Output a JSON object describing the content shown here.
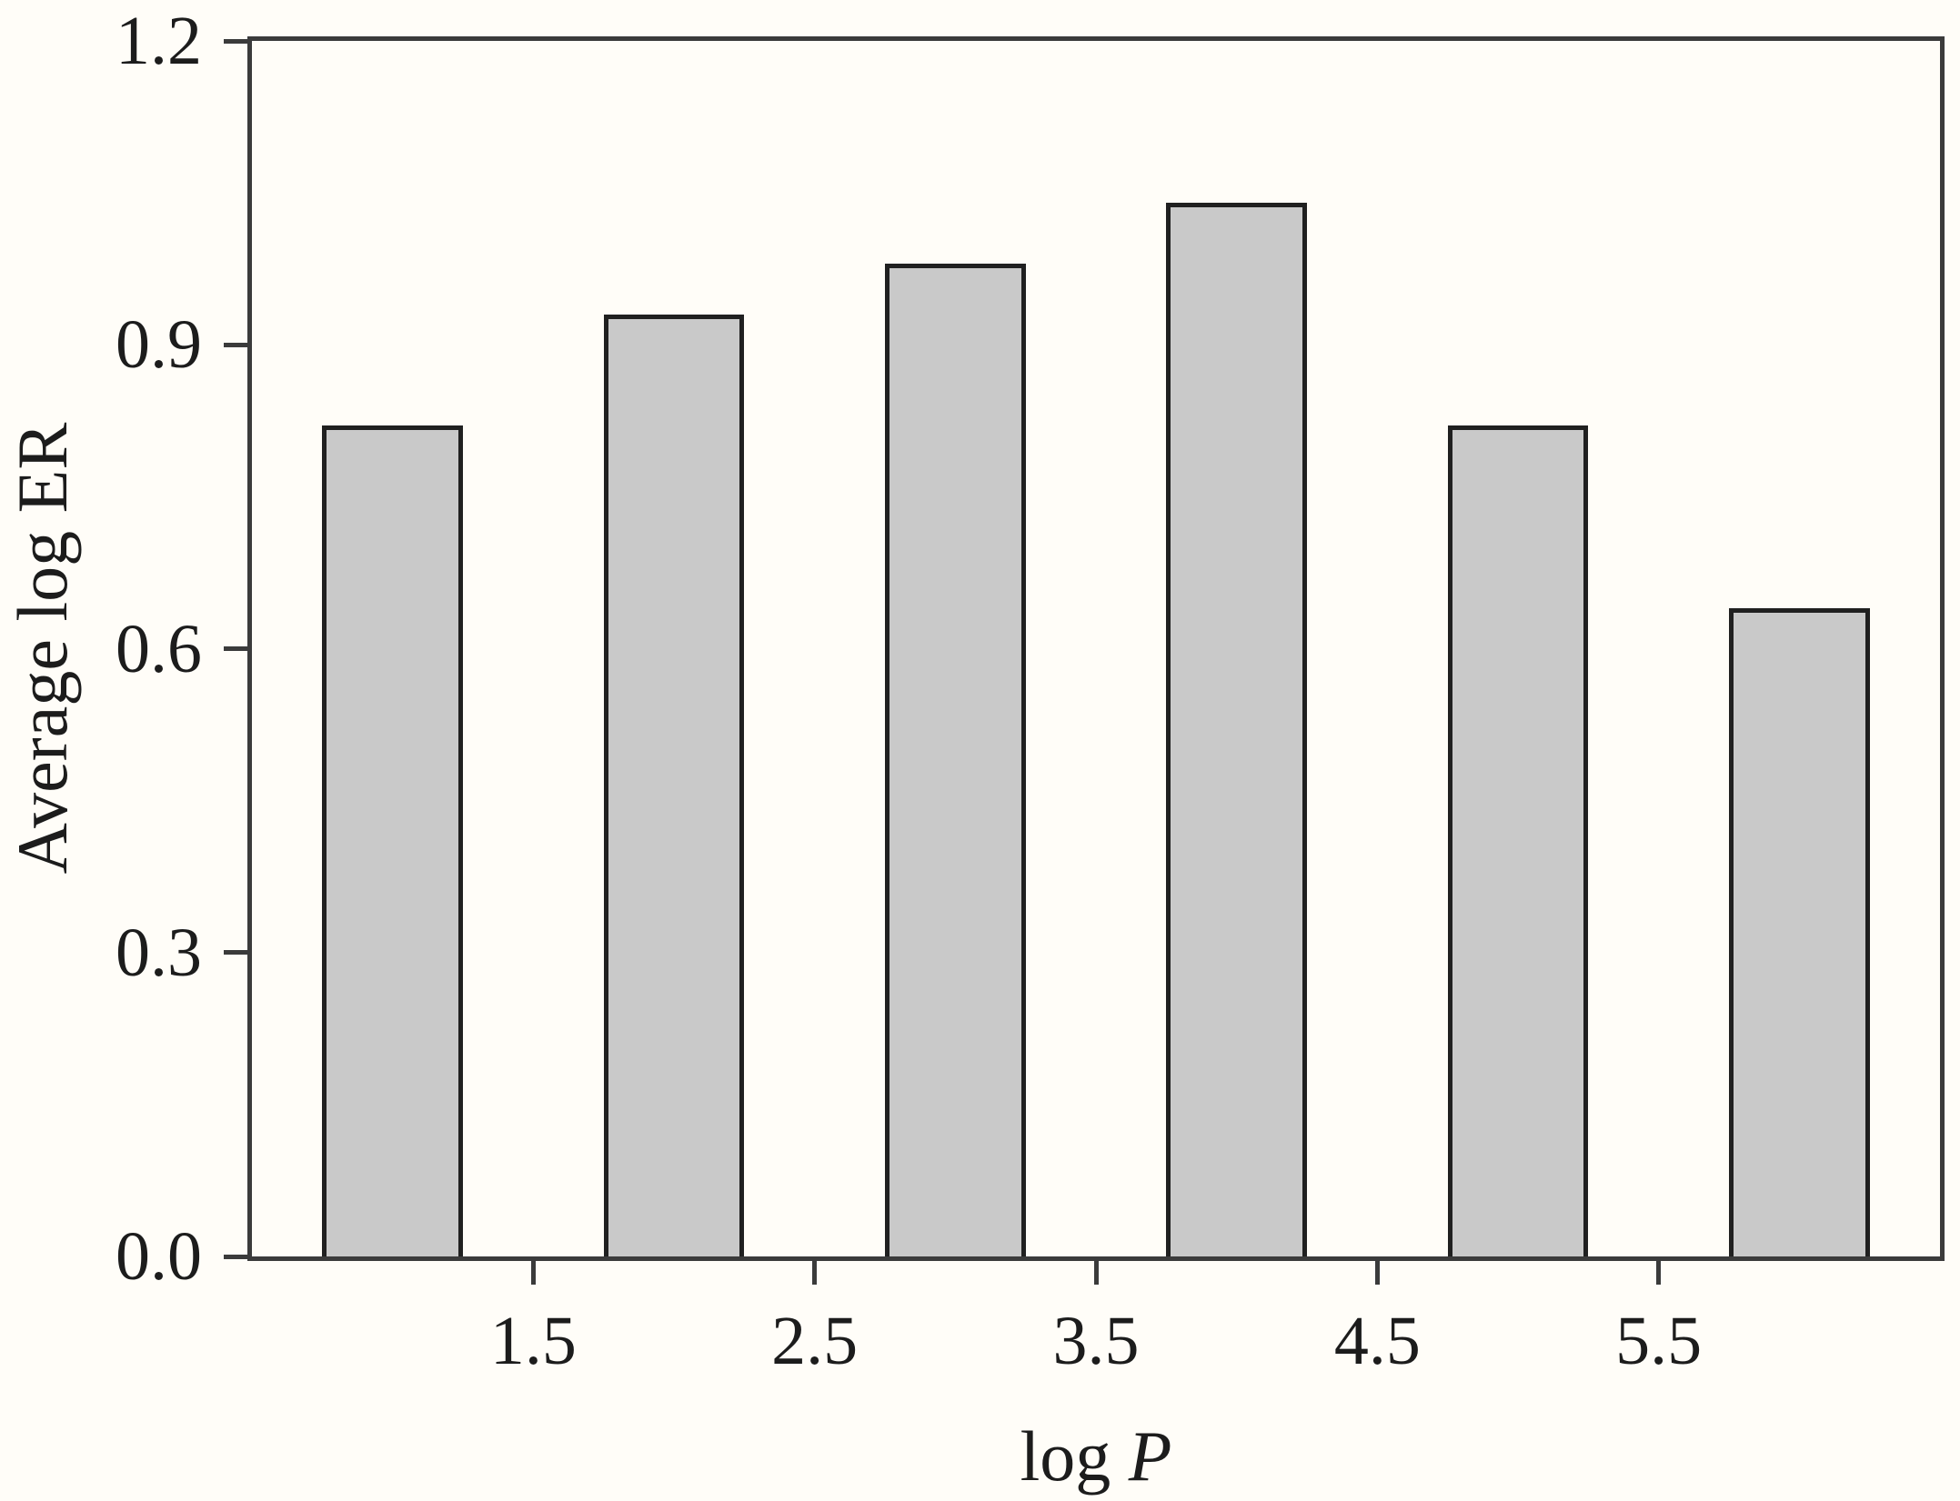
{
  "figure": {
    "background": "#fffdf8"
  },
  "chart_data": {
    "type": "bar",
    "title": "",
    "x": [
      1,
      2,
      3,
      4,
      5,
      6
    ],
    "values": [
      0.82,
      0.93,
      0.98,
      1.04,
      0.82,
      0.64
    ],
    "bar_width": 0.5,
    "xlabel": {
      "prefix": "log",
      "variable": "P"
    },
    "ylabel": "Average log ER",
    "xlim": [
      0.5,
      6.5
    ],
    "ylim": [
      0,
      1.2
    ],
    "xticks": [
      {
        "value": 1.5,
        "label": "1.5"
      },
      {
        "value": 2.5,
        "label": "2.5"
      },
      {
        "value": 3.5,
        "label": "3.5"
      },
      {
        "value": 4.5,
        "label": "4.5"
      },
      {
        "value": 5.5,
        "label": "5.5"
      }
    ],
    "yticks": [
      {
        "value": 0.0,
        "label": "0.0"
      },
      {
        "value": 0.3,
        "label": "0.3"
      },
      {
        "value": 0.6,
        "label": "0.6"
      },
      {
        "value": 0.9,
        "label": "0.9"
      },
      {
        "value": 1.2,
        "label": "1.2"
      }
    ],
    "grid": false,
    "legend": null,
    "bar_fill": "#c9c9c9",
    "bar_stroke": "#202020",
    "axis_color": "#3b3b3b",
    "text_color": "#1c1c1c"
  }
}
